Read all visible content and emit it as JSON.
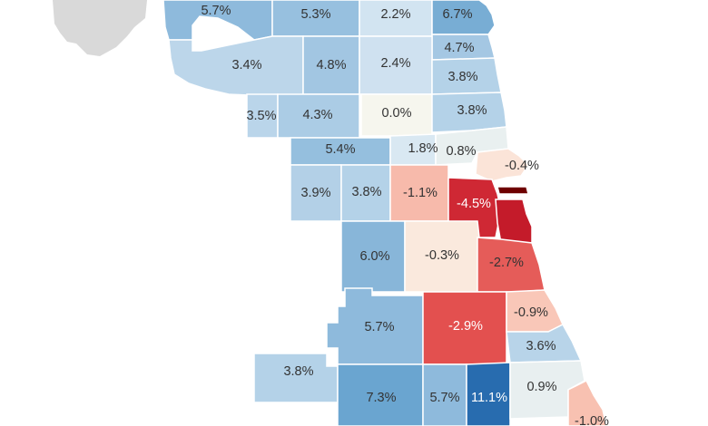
{
  "map": {
    "outside_area_color": "#d9d9d9",
    "regions": [
      {
        "name": "far-north-west",
        "label": "5.7%",
        "value": 5.7
      },
      {
        "name": "north-west-2",
        "label": "5.3%",
        "value": 5.3
      },
      {
        "name": "north-center-top",
        "label": "2.2%",
        "value": 2.2
      },
      {
        "name": "rogers-park",
        "label": "6.7%",
        "value": 6.7
      },
      {
        "name": "edgewater-north",
        "label": "4.7%",
        "value": 4.7
      },
      {
        "name": "northwest-1",
        "label": "3.4%",
        "value": 3.4
      },
      {
        "name": "northwest-2",
        "label": "4.8%",
        "value": 4.8
      },
      {
        "name": "north-center",
        "label": "2.4%",
        "value": 2.4
      },
      {
        "name": "uptown",
        "label": "3.8%",
        "value": 3.8
      },
      {
        "name": "west-north-1",
        "label": "3.5%",
        "value": 3.5
      },
      {
        "name": "west-north-2",
        "label": "4.3%",
        "value": 4.3
      },
      {
        "name": "lincoln-square",
        "label": "0.0%",
        "value": 0.0
      },
      {
        "name": "lakeview",
        "label": "3.8%",
        "value": 3.8
      },
      {
        "name": "belmont-cragin",
        "label": "5.4%",
        "value": 5.4
      },
      {
        "name": "logan-square",
        "label": "1.8%",
        "value": 1.8
      },
      {
        "name": "lincoln-park",
        "label": "0.8%",
        "value": 0.8
      },
      {
        "name": "near-north",
        "label": "-0.4%",
        "value": -0.4
      },
      {
        "name": "austin",
        "label": "3.9%",
        "value": 3.9
      },
      {
        "name": "humboldt-park",
        "label": "3.8%",
        "value": 3.8
      },
      {
        "name": "west-town",
        "label": "-1.1%",
        "value": -1.1
      },
      {
        "name": "near-west",
        "label": "-4.5%",
        "value": -4.5
      },
      {
        "name": "loop",
        "label": "",
        "value": -9.0
      },
      {
        "name": "near-south",
        "label": "",
        "value": -5.2
      },
      {
        "name": "archer-heights",
        "label": "6.0%",
        "value": 6.0
      },
      {
        "name": "brighton-park",
        "label": "-0.3%",
        "value": -0.3
      },
      {
        "name": "bronzeville",
        "label": "-2.7%",
        "value": -2.7
      },
      {
        "name": "west-lawn",
        "label": "5.7%",
        "value": 5.7
      },
      {
        "name": "englewood",
        "label": "-2.9%",
        "value": -2.9
      },
      {
        "name": "hyde-park",
        "label": "-0.9%",
        "value": -0.9
      },
      {
        "name": "south-shore",
        "label": "3.6%",
        "value": 3.6
      },
      {
        "name": "beverly-west",
        "label": "3.8%",
        "value": 3.8
      },
      {
        "name": "ashburn",
        "label": "7.3%",
        "value": 7.3
      },
      {
        "name": "chatham",
        "label": "5.7%",
        "value": 5.7
      },
      {
        "name": "roseland",
        "label": "11.1%",
        "value": 11.1
      },
      {
        "name": "south-chicago",
        "label": "0.9%",
        "value": 0.9
      },
      {
        "name": "east-side",
        "label": "-1.0%",
        "value": -1.0
      }
    ]
  }
}
